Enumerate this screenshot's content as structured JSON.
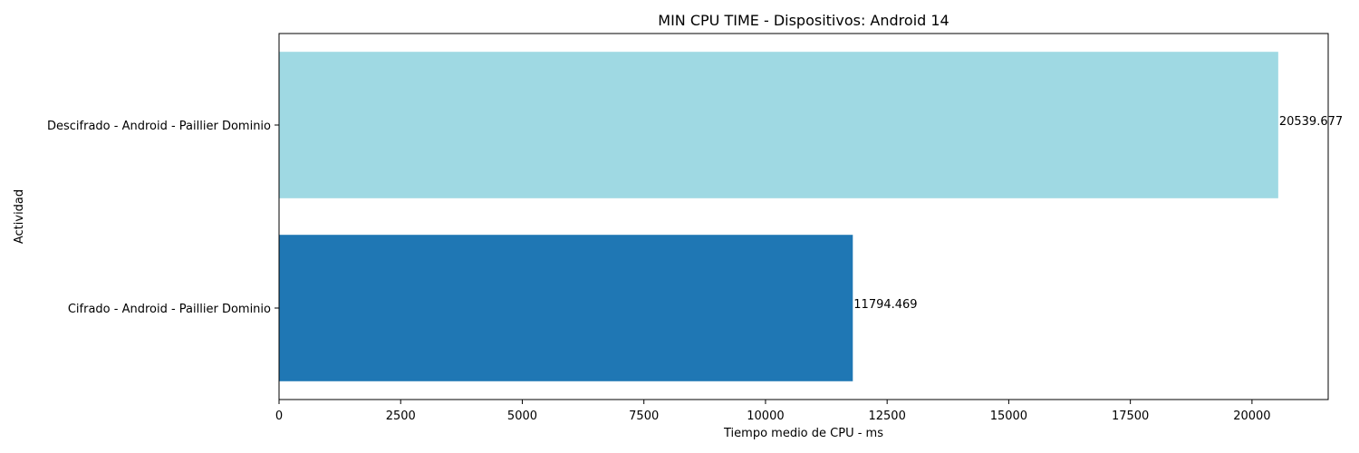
{
  "chart_data": {
    "type": "bar",
    "orientation": "horizontal",
    "title": "MIN CPU TIME - Dispositivos: Android 14",
    "xlabel": "Tiempo medio de CPU - ms",
    "ylabel": "Actividad",
    "categories": [
      "Cifrado - Android - Paillier Dominio",
      "Descifrado - Android - Paillier Dominio"
    ],
    "values": [
      11794.469,
      20539.677
    ],
    "value_labels": [
      "11794.469",
      "20539.677"
    ],
    "colors": [
      "#1f77b4",
      "#9fd9e3"
    ],
    "xlim": [
      0,
      21566.66
    ],
    "xticks": [
      0,
      2500,
      5000,
      7500,
      10000,
      12500,
      15000,
      17500,
      20000
    ],
    "grid": false,
    "legend": "none"
  }
}
